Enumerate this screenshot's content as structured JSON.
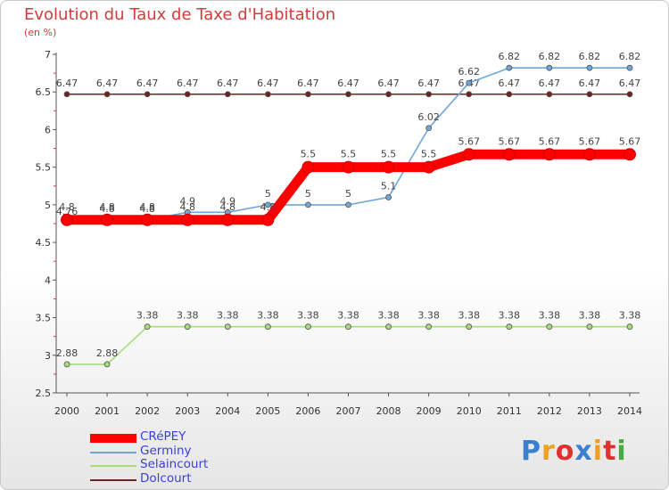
{
  "chart_data": {
    "type": "line",
    "title": "Evolution du Taux de Taxe d'Habitation",
    "subtitle": "(en %)",
    "xlabel": "",
    "ylabel": "(en %)",
    "x": [
      "2000",
      "2001",
      "2002",
      "2003",
      "2004",
      "2005",
      "2006",
      "2007",
      "2008",
      "2009",
      "2010",
      "2011",
      "2012",
      "2013",
      "2014"
    ],
    "ylim": [
      2.5,
      7
    ],
    "yticks": [
      2.5,
      3,
      3.5,
      4,
      4.5,
      5,
      5.5,
      6,
      6.5,
      7
    ],
    "ytick_labels": [
      "2.5",
      "3",
      "3.5",
      "4",
      "4.5",
      "5",
      "5.5",
      "6",
      "6.5",
      "7"
    ],
    "grid": false,
    "legend_position": "bottom-left",
    "series": [
      {
        "name": "Dolcourt",
        "color": "#6b2424",
        "values": [
          6.47,
          6.47,
          6.47,
          6.47,
          6.47,
          6.47,
          6.47,
          6.47,
          6.47,
          6.47,
          6.47,
          6.47,
          6.47,
          6.47,
          6.47
        ],
        "labels": [
          "6.47",
          "6.47",
          "6.47",
          "6.47",
          "6.47",
          "6.47",
          "6.47",
          "6.47",
          "6.47",
          "6.47",
          "6.47",
          "6.47",
          "6.47",
          "6.47",
          "6.47"
        ]
      },
      {
        "name": "Selaincourt",
        "color": "#a6dc7a",
        "values": [
          2.88,
          2.88,
          3.38,
          3.38,
          3.38,
          3.38,
          3.38,
          3.38,
          3.38,
          3.38,
          3.38,
          3.38,
          3.38,
          3.38,
          3.38
        ],
        "labels": [
          "2.88",
          "2.88",
          "3.38",
          "3.38",
          "3.38",
          "3.38",
          "3.38",
          "3.38",
          "3.38",
          "3.38",
          "3.38",
          "3.38",
          "3.38",
          "3.38",
          "3.38"
        ]
      },
      {
        "name": "Germiny",
        "color": "#6fa6d8",
        "values": [
          4.76,
          4.8,
          4.8,
          4.9,
          4.9,
          5,
          5,
          5,
          5.1,
          6.02,
          6.62,
          6.82,
          6.82,
          6.82,
          6.82
        ],
        "labels": [
          "4.76",
          "4.8",
          "4.8",
          "4.9",
          "4.9",
          "5",
          "5",
          "5",
          "5.1",
          "6.02",
          "6.62",
          "6.82",
          "6.82",
          "6.82",
          "6.82"
        ]
      },
      {
        "name": "CRéPEY",
        "color": "#ff0000",
        "values": [
          4.8,
          4.8,
          4.8,
          4.8,
          4.8,
          4.8,
          5.5,
          5.5,
          5.5,
          5.5,
          5.67,
          5.67,
          5.67,
          5.67,
          5.67
        ],
        "labels": [
          "4.8",
          "4.8",
          "4.8",
          "4.8",
          "4.8",
          "4.8",
          "5.5",
          "5.5",
          "5.5",
          "5.5",
          "5.67",
          "5.67",
          "5.67",
          "5.67",
          "5.67"
        ]
      }
    ]
  },
  "legend": [
    {
      "name": "CRéPEY",
      "color": "#ff0000",
      "thickness": "thick"
    },
    {
      "name": "Germiny",
      "color": "#6fa6d8",
      "thickness": "thin"
    },
    {
      "name": "Selaincourt",
      "color": "#a6dc7a",
      "thickness": "thin"
    },
    {
      "name": "Dolcourt",
      "color": "#6b2424",
      "thickness": "thin"
    }
  ],
  "logo": {
    "letters": [
      "P",
      "r",
      "o",
      "x",
      "i",
      "t",
      "i"
    ],
    "colors": [
      "#3b7fd0",
      "#f0a020",
      "#e23030",
      "#3b7fd0",
      "#f0a020",
      "#e23030",
      "#44aa44"
    ]
  }
}
